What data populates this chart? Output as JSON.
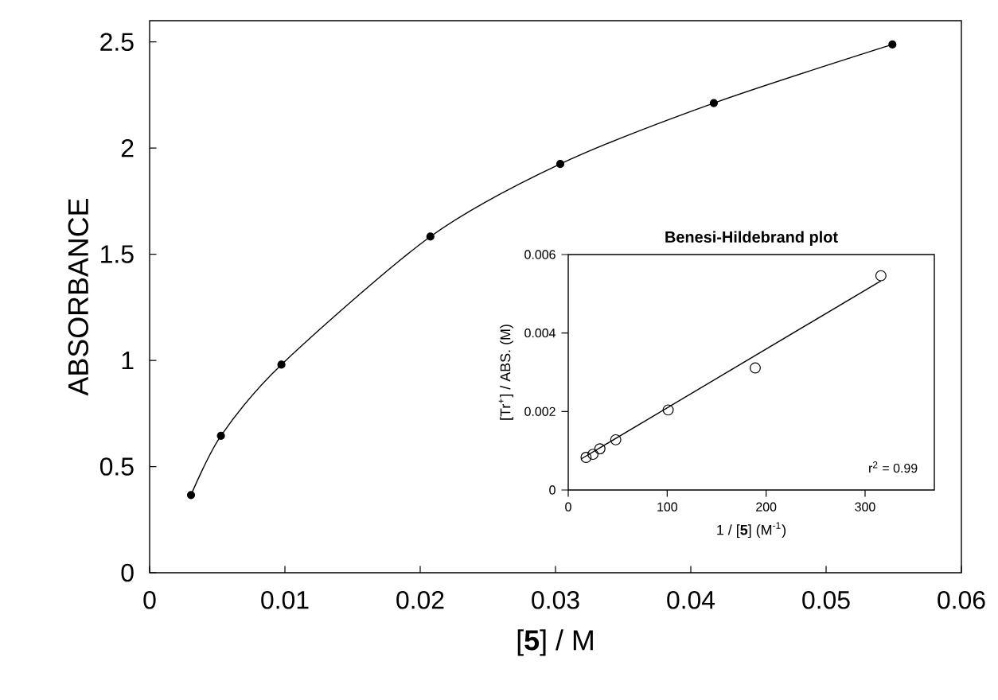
{
  "chart_data": [
    {
      "type": "line",
      "xlabel": "[**5**] / M",
      "ylabel": "ABSORBANCE",
      "marker": "circle",
      "color": "#000000",
      "x": [
        0.00306,
        0.00527,
        0.00974,
        0.02075,
        0.03035,
        0.0417,
        0.0549
      ],
      "values": [
        0.366,
        0.645,
        0.98,
        1.583,
        1.925,
        2.212,
        2.488
      ],
      "xlim": [
        0,
        0.06
      ],
      "ylim": [
        0,
        2.6
      ],
      "xticks": [
        0,
        0.01,
        0.02,
        0.03,
        0.04,
        0.05,
        0.06
      ],
      "yticks": [
        0,
        0.5,
        1,
        1.5,
        2,
        2.5
      ]
    },
    {
      "type": "scatter",
      "title": "Benesi-Hildebrand plot",
      "xlabel": "1 / [**5**] (M$^{-1}$)",
      "ylabel": "[Tr$^{+}$] / ABS. (M)",
      "marker": "circle",
      "annotations": [
        "r$^{2}$ = 0.99"
      ],
      "series": [
        {
          "color": "#000000",
          "x": [
            18,
            25,
            32,
            48,
            101,
            189,
            316
          ],
          "values": [
            0.00083,
            0.00091,
            0.00105,
            0.00128,
            0.00204,
            0.00311,
            0.00546
          ]
        },
        {
          "type": "line",
          "marker": "none",
          "color": "#000000",
          "x": [
            13,
            316
          ],
          "values": [
            0.00079,
            0.00533
          ]
        }
      ],
      "xlim": [
        0,
        370
      ],
      "ylim": [
        0,
        0.006
      ],
      "xticks": [
        0,
        100,
        200,
        300
      ],
      "yticks": [
        0,
        0.002,
        0.004,
        0.006
      ]
    }
  ]
}
